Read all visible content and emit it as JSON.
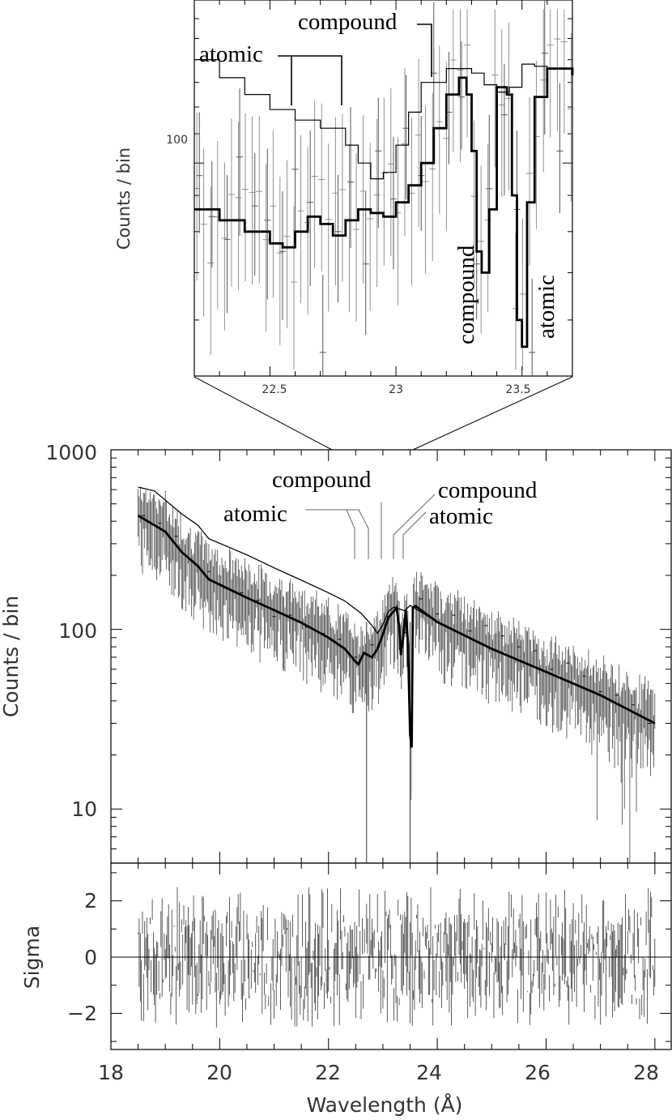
{
  "chart_data": [
    {
      "panel": "inset",
      "type": "line",
      "scale_y": "log",
      "xlim": [
        22.2,
        23.7
      ],
      "ylim": [
        50,
        170
      ],
      "x_ticks": [
        "22.5",
        "23",
        "23.5"
      ],
      "y_ticks": [
        "100"
      ],
      "ylabel": "Counts / bin",
      "series": [
        {
          "style": "thin-histogram",
          "x": [
            22.2,
            22.3,
            22.4,
            22.5,
            22.6,
            22.7,
            22.8,
            22.85,
            22.9,
            22.95,
            23.0,
            23.05,
            23.1,
            23.2,
            23.3,
            23.35,
            23.4,
            23.45,
            23.5,
            23.55,
            23.6,
            23.7
          ],
          "y": [
            140,
            132,
            125,
            119,
            115,
            112,
            106,
            100,
            95,
            97,
            106,
            118,
            130,
            136,
            134,
            129,
            126,
            128,
            138,
            137,
            136,
            133
          ]
        },
        {
          "style": "thick-histogram",
          "x": [
            22.2,
            22.3,
            22.4,
            22.5,
            22.55,
            22.6,
            22.65,
            22.7,
            22.75,
            22.8,
            22.85,
            22.9,
            22.95,
            23.0,
            23.05,
            23.1,
            23.15,
            23.2,
            23.25,
            23.28,
            23.3,
            23.32,
            23.34,
            23.37,
            23.4,
            23.44,
            23.46,
            23.48,
            23.5,
            23.52,
            23.55,
            23.6,
            23.7
          ],
          "y": [
            86,
            83,
            80,
            77,
            76,
            80,
            84,
            82,
            79,
            83,
            86,
            85,
            84,
            88,
            93,
            100,
            112,
            125,
            132,
            125,
            104,
            75,
            70,
            86,
            128,
            125,
            90,
            60,
            55,
            88,
            124,
            136,
            133
          ]
        }
      ],
      "data_points": {
        "x": [
          22.22,
          22.27,
          22.33,
          22.38,
          22.44,
          22.49,
          22.55,
          22.6,
          22.66,
          22.71,
          22.77,
          22.82,
          22.88,
          22.93,
          22.99,
          23.04,
          23.1,
          23.15,
          23.21,
          23.26,
          23.32,
          23.37,
          23.43,
          23.48,
          23.54,
          23.59,
          23.65
        ],
        "y": [
          96,
          84,
          78,
          102,
          87,
          83,
          75,
          98,
          88,
          54,
          80,
          94,
          72,
          104,
          89,
          112,
          96,
          134,
          118,
          124,
          72,
          92,
          117,
          86,
          54,
          143,
          104
        ]
      },
      "annotations": [
        "atomic",
        "compound",
        "compound",
        "atomic"
      ]
    },
    {
      "panel": "main",
      "type": "line",
      "scale_y": "log",
      "xlim": [
        18,
        28.3
      ],
      "ylim": [
        5,
        1000
      ],
      "y_ticks": [
        "1000",
        "100",
        "10"
      ],
      "ylabel": "Counts / bin",
      "series": [
        {
          "style": "thin",
          "x": [
            18.5,
            18.8,
            19.3,
            19.6,
            19.8,
            20.5,
            21.0,
            21.5,
            22.0,
            22.3,
            22.6,
            22.8,
            22.9,
            23.0,
            23.1,
            23.2,
            23.3,
            23.4,
            23.5,
            24.0,
            25.0,
            26.0,
            27.0,
            28.0
          ],
          "y": [
            620,
            590,
            440,
            380,
            320,
            260,
            220,
            188,
            160,
            144,
            123,
            105,
            95,
            106,
            126,
            133,
            130,
            127,
            136,
            110,
            78,
            58,
            43,
            30
          ]
        },
        {
          "style": "thick",
          "x": [
            18.5,
            19.0,
            19.3,
            19.6,
            19.8,
            20.5,
            21.0,
            21.5,
            22.0,
            22.3,
            22.5,
            22.55,
            22.65,
            22.8,
            22.9,
            23.0,
            23.1,
            23.25,
            23.3,
            23.33,
            23.37,
            23.42,
            23.46,
            23.5,
            23.53,
            23.55,
            23.6,
            24.0,
            25.0,
            26.0,
            27.0,
            28.0
          ],
          "y": [
            430,
            350,
            270,
            225,
            190,
            150,
            128,
            109,
            90,
            78,
            66,
            64,
            74,
            70,
            78,
            94,
            116,
            132,
            104,
            72,
            88,
            128,
            86,
            26,
            22,
            132,
            135,
            110,
            78,
            58,
            43,
            30
          ]
        }
      ],
      "data_points": {
        "x": [
          18.6,
          18.9,
          19.2,
          19.5,
          19.8,
          20.1,
          20.4,
          20.7,
          21.0,
          21.3,
          21.6,
          21.9,
          22.2,
          22.5,
          22.8,
          23.1,
          23.4,
          23.7,
          24.0,
          24.3,
          24.6,
          24.9,
          25.2,
          25.5,
          25.8,
          26.1,
          26.4,
          26.7,
          27.0,
          27.3,
          27.6,
          27.9
        ],
        "y": [
          430,
          390,
          330,
          240,
          210,
          170,
          160,
          145,
          118,
          120,
          103,
          95,
          88,
          70,
          82,
          118,
          96,
          148,
          122,
          120,
          98,
          105,
          92,
          80,
          76,
          60,
          65,
          55,
          45,
          43,
          38,
          30
        ]
      },
      "annotations": [
        "compound",
        "atomic",
        "compound",
        "atomic"
      ]
    },
    {
      "panel": "residuals",
      "type": "line",
      "xlim": [
        18,
        28.3
      ],
      "ylim": [
        -3.3,
        3.3
      ],
      "x_ticks": [
        "18",
        "20",
        "22",
        "24",
        "26",
        "28"
      ],
      "y_ticks": [
        "2",
        "0",
        "−2"
      ],
      "ylabel": "Sigma",
      "xlabel": "Wavelength (Å)"
    }
  ]
}
